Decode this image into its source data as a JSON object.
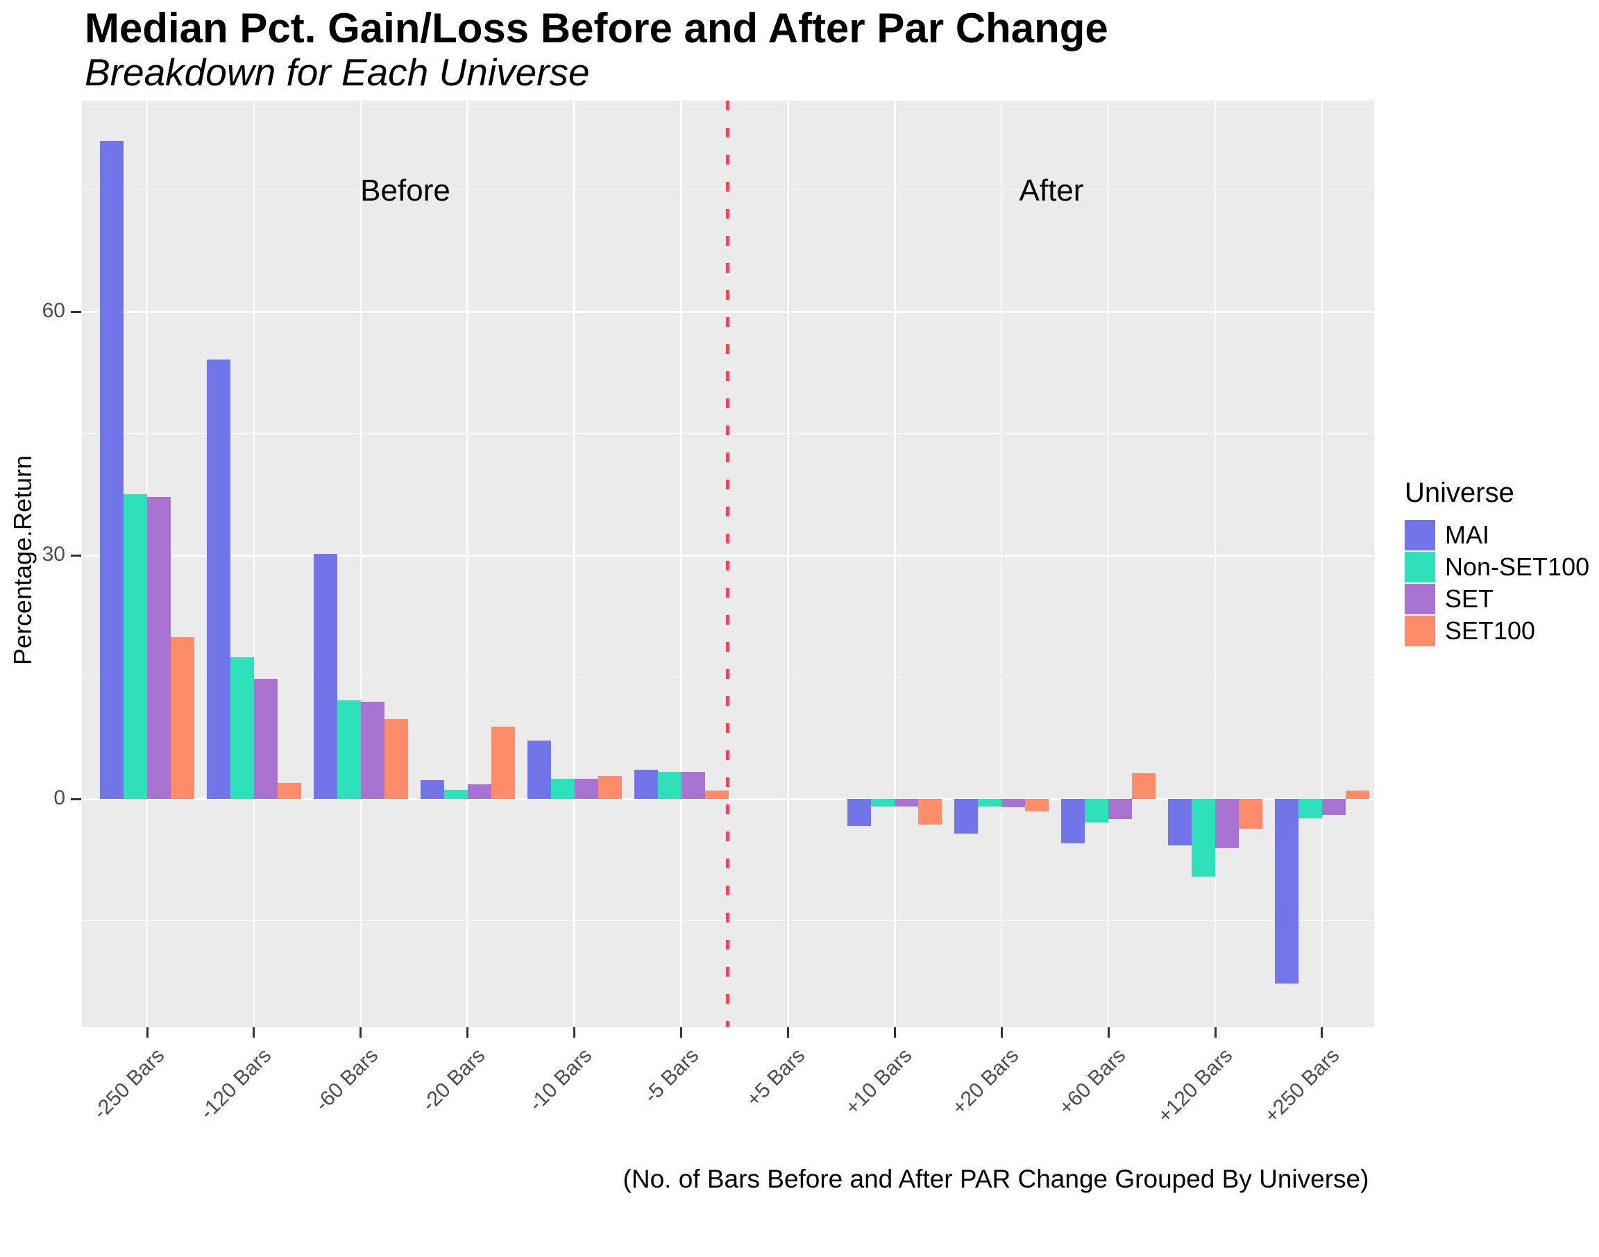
{
  "chart_data": {
    "type": "bar",
    "title": "Median Pct. Gain/Loss Before and After Par Change",
    "subtitle": "Breakdown for Each Universe",
    "ylabel": "Percentage.Return",
    "xlabel": "(No. of Bars Before and After PAR Change Grouped By Universe)",
    "categories": [
      "-250 Bars",
      "-120 Bars",
      "-60 Bars",
      "-20 Bars",
      "-10 Bars",
      "-5 Bars",
      "+5 Bars",
      "+10 Bars",
      "+20 Bars",
      "+60 Bars",
      "+120 Bars",
      "+250 Bars"
    ],
    "series": [
      {
        "name": "MAI",
        "color": "#7175E8",
        "values": [
          81.0,
          54.1,
          30.2,
          2.3,
          7.2,
          3.6,
          0,
          -3.3,
          -4.3,
          -5.5,
          -5.7,
          -22.7
        ]
      },
      {
        "name": "Non-SET100",
        "color": "#2EE1BA",
        "values": [
          37.5,
          17.4,
          12.1,
          1.1,
          2.5,
          3.3,
          0,
          -0.9,
          -0.9,
          -2.9,
          -9.6,
          -2.4
        ]
      },
      {
        "name": "SET",
        "color": "#A873D0",
        "values": [
          37.2,
          14.8,
          12.0,
          1.8,
          2.5,
          3.3,
          0,
          -0.9,
          -1.0,
          -2.5,
          -6.1,
          -2.0
        ]
      },
      {
        "name": "SET100",
        "color": "#FC8C6A",
        "values": [
          19.9,
          2.0,
          9.8,
          8.9,
          2.8,
          1.0,
          0,
          -3.2,
          -1.5,
          3.2,
          -3.7,
          1.0
        ]
      }
    ],
    "y_ticks": [
      0,
      30,
      60
    ],
    "y_minor_gridlines": [
      -15,
      15,
      45,
      75
    ],
    "ylim": [
      -28,
      86
    ],
    "grid": true,
    "panel_bg": "#EBEBEB",
    "legend": {
      "title": "Universe",
      "position": "right"
    },
    "annotations": {
      "before": "Before",
      "after": "After"
    },
    "divider": {
      "style": "dashed",
      "color": "#F2455C",
      "between": [
        "-5 Bars",
        "+5 Bars"
      ]
    }
  }
}
